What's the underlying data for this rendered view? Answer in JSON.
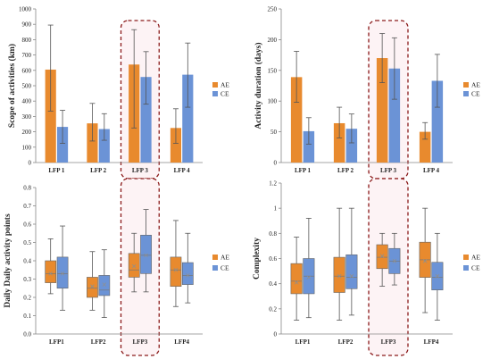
{
  "colors": {
    "ae": "#e88a2e",
    "ce": "#6b93d6",
    "error": "#555555",
    "axis": "#888888",
    "highlight": "#8b1a1a",
    "highlight_fill": "#fdf3f5"
  },
  "chart_data": [
    {
      "id": "p1",
      "type": "bar",
      "ylabel": "Scope of activities (km)",
      "ylim": [
        0,
        1000
      ],
      "yticks": [
        0,
        100,
        200,
        300,
        400,
        500,
        600,
        700,
        800,
        900,
        1000
      ],
      "categories": [
        "LFP 1",
        "LFP 2",
        "LFP 3",
        "LFP 4"
      ],
      "highlight_index": 2,
      "legend_position": "right",
      "series": [
        {
          "name": "AE",
          "values": [
            605,
            255,
            638,
            225
          ],
          "err_low": [
            335,
            140,
            225,
            125
          ],
          "err_high": [
            895,
            385,
            865,
            350
          ]
        },
        {
          "name": "CE",
          "values": [
            232,
            218,
            557,
            572
          ],
          "err_low": [
            125,
            145,
            380,
            360
          ],
          "err_high": [
            340,
            318,
            722,
            778
          ]
        }
      ]
    },
    {
      "id": "p2",
      "type": "bar",
      "ylabel": "Activity duration (days)",
      "ylim": [
        0,
        250
      ],
      "yticks": [
        0,
        50,
        100,
        150,
        200,
        250
      ],
      "categories": [
        "LFP 1",
        "LFP 2",
        "LFP 3",
        "LFP 4"
      ],
      "highlight_index": 2,
      "legend_position": "right",
      "series": [
        {
          "name": "AE",
          "values": [
            139,
            64,
            170,
            50
          ],
          "err_low": [
            98,
            40,
            130,
            38
          ],
          "err_high": [
            181,
            90,
            210,
            65
          ]
        },
        {
          "name": "CE",
          "values": [
            51,
            55,
            153,
            133
          ],
          "err_low": [
            30,
            32,
            103,
            90
          ],
          "err_high": [
            73,
            79,
            203,
            176
          ]
        }
      ]
    },
    {
      "id": "p3",
      "type": "box",
      "ylabel": "Daily Daily activity points",
      "ylim": [
        0,
        0.8
      ],
      "yticks": [
        0,
        0.1,
        0.2,
        0.3,
        0.4,
        0.5,
        0.6,
        0.7,
        0.8
      ],
      "categories": [
        "LFP1",
        "LFP2",
        "LFP3",
        "LFP4"
      ],
      "highlight_index": 2,
      "legend_position": "right",
      "series": [
        {
          "name": "AE",
          "min": [
            0.22,
            0.13,
            0.23,
            0.15
          ],
          "q1": [
            0.28,
            0.2,
            0.31,
            0.26
          ],
          "median": [
            0.33,
            0.25,
            0.35,
            0.35
          ],
          "q3": [
            0.4,
            0.31,
            0.44,
            0.42
          ],
          "max": [
            0.52,
            0.45,
            0.55,
            0.62
          ],
          "mean": [
            0.33,
            0.26,
            0.37,
            0.35
          ]
        },
        {
          "name": "CE",
          "min": [
            0.13,
            0.09,
            0.23,
            0.17
          ],
          "q1": [
            0.25,
            0.21,
            0.33,
            0.27
          ],
          "median": [
            0.33,
            0.24,
            0.43,
            0.32
          ],
          "q3": [
            0.42,
            0.32,
            0.54,
            0.39
          ],
          "max": [
            0.59,
            0.46,
            0.68,
            0.55
          ],
          "mean": [
            0.33,
            0.27,
            0.43,
            0.32
          ]
        }
      ]
    },
    {
      "id": "p4",
      "type": "box",
      "ylabel": "Complexity",
      "ylim": [
        0,
        1.2
      ],
      "yticks": [
        0,
        0.2,
        0.4,
        0.6,
        0.8,
        1.0,
        1.2
      ],
      "ytick_labels": [
        "0",
        "0.2",
        "0.4",
        "0.6",
        "0.8",
        "1",
        "1.2"
      ],
      "categories": [
        "LFP1",
        "LFP2",
        "LFP3",
        "LFP4"
      ],
      "highlight_index": 2,
      "legend_position": "right",
      "series": [
        {
          "name": "AE",
          "min": [
            0.11,
            0.11,
            0.38,
            0.17
          ],
          "q1": [
            0.32,
            0.33,
            0.52,
            0.45
          ],
          "median": [
            0.42,
            0.46,
            0.61,
            0.59
          ],
          "q3": [
            0.56,
            0.61,
            0.71,
            0.73
          ],
          "max": [
            0.77,
            1.0,
            0.8,
            1.0
          ],
          "mean": [
            0.41,
            0.46,
            0.62,
            0.58
          ]
        },
        {
          "name": "CE",
          "min": [
            0.13,
            0.15,
            0.39,
            0.11
          ],
          "q1": [
            0.32,
            0.36,
            0.48,
            0.35
          ],
          "median": [
            0.46,
            0.45,
            0.58,
            0.45
          ],
          "q3": [
            0.6,
            0.63,
            0.68,
            0.57
          ],
          "max": [
            0.92,
            1.0,
            0.8,
            0.8
          ],
          "mean": [
            0.45,
            0.46,
            0.58,
            0.46
          ]
        }
      ]
    }
  ]
}
